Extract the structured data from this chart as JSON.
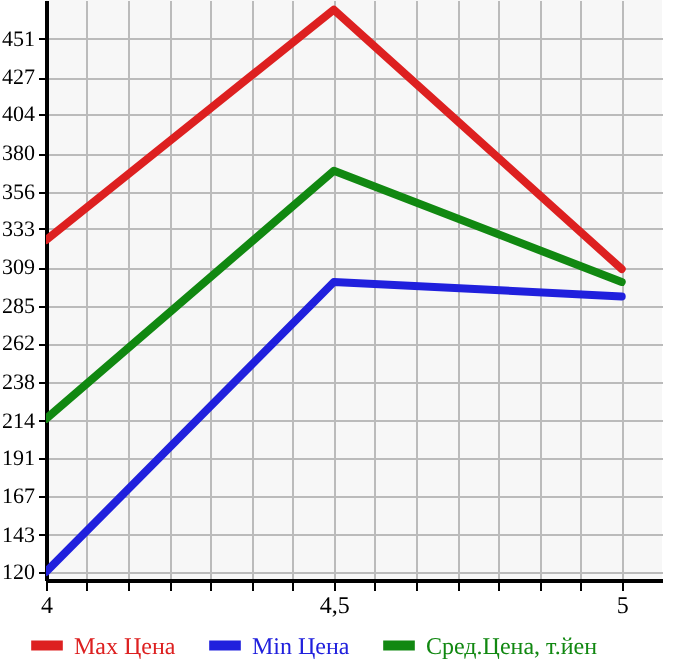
{
  "chart_data": {
    "type": "line",
    "x": [
      4,
      4.5,
      5
    ],
    "series": [
      {
        "name": "Max Цена",
        "color": "#dd2020",
        "values": [
          326,
          469,
          308
        ]
      },
      {
        "name": "Min Цена",
        "color": "#2020dd",
        "values": [
          120,
          300,
          291
        ]
      },
      {
        "name": "Сред.Цена, т.йен",
        "color": "#118811",
        "values": [
          215,
          369,
          300
        ]
      }
    ],
    "xlim": [
      4,
      5.07
    ],
    "xticks": [
      {
        "value": 4,
        "label": "4"
      },
      {
        "value": 4.071,
        "label": null
      },
      {
        "value": 4.143,
        "label": null
      },
      {
        "value": 4.214,
        "label": null
      },
      {
        "value": 4.286,
        "label": null
      },
      {
        "value": 4.357,
        "label": null
      },
      {
        "value": 4.429,
        "label": null
      },
      {
        "value": 4.5,
        "label": "4,5"
      },
      {
        "value": 4.571,
        "label": null
      },
      {
        "value": 4.643,
        "label": null
      },
      {
        "value": 4.714,
        "label": null
      },
      {
        "value": 4.786,
        "label": null
      },
      {
        "value": 4.857,
        "label": null
      },
      {
        "value": 4.929,
        "label": null
      },
      {
        "value": 5,
        "label": "5"
      }
    ],
    "ylim": [
      115,
      475
    ],
    "yticks": [
      120,
      143,
      167,
      191,
      214,
      238,
      262,
      285,
      309,
      333,
      356,
      380,
      404,
      427,
      451
    ],
    "grid": true,
    "legend": "bottom",
    "marker": "none",
    "line_style": "solid"
  }
}
